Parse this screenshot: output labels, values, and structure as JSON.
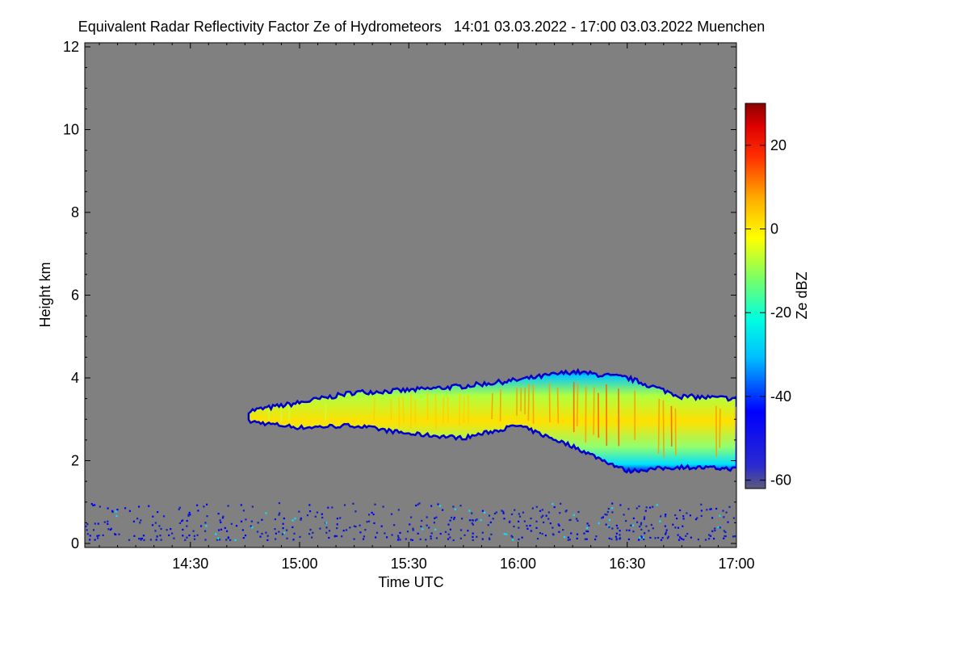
{
  "chart_data": {
    "type": "heatmap",
    "title": "Equivalent Radar Reflectivity Factor Ze of Hydrometeors   14:01 03.03.2022 - 17:00 03.03.2022 Muenchen",
    "xlabel": "Time UTC",
    "ylabel": "Height km",
    "x_ticks": [
      "14:30",
      "15:00",
      "15:30",
      "16:00",
      "16:30",
      "17:00"
    ],
    "x_tick_hours": [
      14.5,
      15.0,
      15.5,
      16.0,
      16.5,
      17.0
    ],
    "xlim_hours": [
      14.0167,
      17.0
    ],
    "y_ticks": [
      0,
      2,
      4,
      6,
      8,
      10,
      12
    ],
    "ylim": [
      0,
      12
    ],
    "colorbar": {
      "label": "Ze dBZ",
      "ticks": [
        20,
        0,
        -20,
        -40,
        -60
      ],
      "range": [
        -62,
        30
      ],
      "background_color": "#808080"
    },
    "cloud_layer": {
      "description_points": [
        {
          "time": "14:46",
          "base_km": 2.95,
          "top_km": 3.2
        },
        {
          "time": "15:00",
          "base_km": 2.8,
          "top_km": 3.4
        },
        {
          "time": "15:15",
          "base_km": 2.85,
          "top_km": 3.65
        },
        {
          "time": "15:30",
          "base_km": 2.65,
          "top_km": 3.7
        },
        {
          "time": "15:45",
          "base_km": 2.55,
          "top_km": 3.8
        },
        {
          "time": "16:00",
          "base_km": 2.85,
          "top_km": 3.95
        },
        {
          "time": "16:15",
          "base_km": 2.35,
          "top_km": 4.15
        },
        {
          "time": "16:30",
          "base_km": 1.75,
          "top_km": 4.0
        },
        {
          "time": "16:45",
          "base_km": 1.85,
          "top_km": 3.55
        },
        {
          "time": "17:00",
          "base_km": 1.8,
          "top_km": 3.5
        }
      ],
      "max_dbz": 20
    },
    "clutter_layer": {
      "height_km": [
        0.1,
        1.0
      ],
      "typical_dbz": -40
    }
  }
}
